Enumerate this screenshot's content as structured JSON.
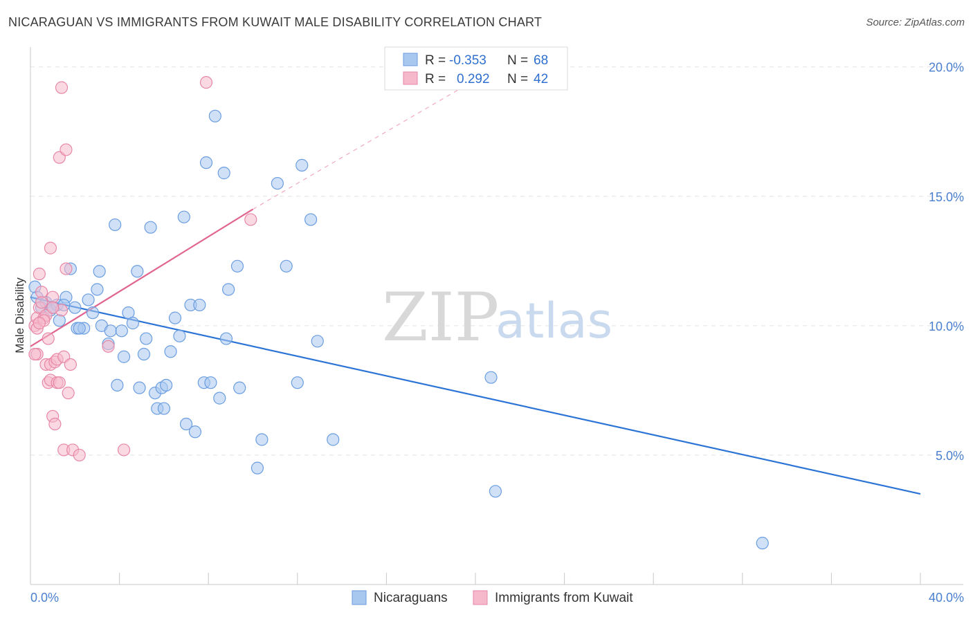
{
  "header": {
    "title": "NICARAGUAN VS IMMIGRANTS FROM KUWAIT MALE DISABILITY CORRELATION CHART",
    "source": "Source: ZipAtlas.com"
  },
  "watermark": {
    "zip": "ZIP",
    "atlas": "atlas"
  },
  "legend": {
    "rows": [
      {
        "r_label": "R =",
        "r_value": "-0.353",
        "n_label": "N =",
        "n_value": "68",
        "color": "#a9c8f0",
        "stroke": "#6a9de0"
      },
      {
        "r_label": "R =",
        "r_value": "0.292",
        "n_label": "N =",
        "n_value": "42",
        "color": "#f6b9cc",
        "stroke": "#e787a7"
      }
    ]
  },
  "bottom_legend": [
    {
      "label": "Nicaraguans",
      "color": "#a9c8f0",
      "stroke": "#6a9de0"
    },
    {
      "label": "Immigrants from Kuwait",
      "color": "#f6b9cc",
      "stroke": "#e787a7"
    }
  ],
  "chart_data": {
    "type": "scatter",
    "ylabel": "Male Disability",
    "xlabel": "",
    "xlim": [
      0,
      40
    ],
    "ylim": [
      0,
      20.5
    ],
    "x_tick_labels": [
      {
        "value": 0,
        "label": "0.0%"
      },
      {
        "value": 40,
        "label": "40.0%"
      }
    ],
    "y_tick_labels": [
      {
        "value": 5,
        "label": "5.0%"
      },
      {
        "value": 10,
        "label": "10.0%"
      },
      {
        "value": 15,
        "label": "15.0%"
      },
      {
        "value": 20,
        "label": "20.0%"
      }
    ],
    "grid": "horizontal dashed",
    "series": [
      {
        "name": "Nicaraguans",
        "color": "#a9c8f0",
        "stroke": "#6a9de0",
        "points": [
          [
            0.2,
            11.5
          ],
          [
            0.3,
            11.1
          ],
          [
            0.5,
            10.7
          ],
          [
            0.7,
            10.9
          ],
          [
            0.9,
            10.6
          ],
          [
            1.2,
            10.8
          ],
          [
            1.3,
            10.2
          ],
          [
            1.6,
            11.1
          ],
          [
            1.8,
            12.2
          ],
          [
            2.0,
            10.7
          ],
          [
            2.1,
            9.9
          ],
          [
            2.4,
            9.9
          ],
          [
            2.6,
            11.0
          ],
          [
            2.8,
            10.5
          ],
          [
            3.0,
            11.4
          ],
          [
            3.1,
            12.1
          ],
          [
            3.2,
            10.0
          ],
          [
            3.5,
            9.3
          ],
          [
            3.6,
            9.8
          ],
          [
            3.8,
            13.9
          ],
          [
            3.9,
            7.7
          ],
          [
            4.1,
            9.8
          ],
          [
            4.2,
            8.8
          ],
          [
            4.4,
            10.5
          ],
          [
            4.6,
            10.1
          ],
          [
            4.8,
            12.1
          ],
          [
            4.9,
            7.6
          ],
          [
            5.1,
            8.9
          ],
          [
            5.2,
            9.5
          ],
          [
            5.4,
            13.8
          ],
          [
            5.6,
            7.4
          ],
          [
            5.7,
            6.8
          ],
          [
            5.9,
            7.6
          ],
          [
            6.0,
            6.8
          ],
          [
            6.1,
            7.7
          ],
          [
            6.3,
            9.0
          ],
          [
            6.5,
            10.3
          ],
          [
            6.7,
            9.6
          ],
          [
            6.9,
            14.2
          ],
          [
            7.0,
            6.2
          ],
          [
            7.2,
            10.8
          ],
          [
            7.4,
            5.9
          ],
          [
            7.6,
            10.8
          ],
          [
            7.8,
            7.8
          ],
          [
            7.9,
            16.3
          ],
          [
            8.1,
            7.8
          ],
          [
            8.3,
            18.1
          ],
          [
            8.5,
            7.2
          ],
          [
            8.7,
            15.9
          ],
          [
            8.8,
            9.5
          ],
          [
            8.9,
            11.4
          ],
          [
            9.3,
            12.3
          ],
          [
            9.4,
            7.6
          ],
          [
            10.2,
            4.5
          ],
          [
            10.4,
            5.6
          ],
          [
            11.1,
            15.5
          ],
          [
            11.5,
            12.3
          ],
          [
            12.0,
            7.8
          ],
          [
            12.2,
            16.2
          ],
          [
            12.6,
            14.1
          ],
          [
            12.9,
            9.4
          ],
          [
            13.6,
            5.6
          ],
          [
            20.7,
            8.0
          ],
          [
            20.9,
            3.6
          ],
          [
            32.9,
            1.6
          ],
          [
            1.0,
            10.7
          ],
          [
            1.5,
            10.8
          ],
          [
            2.2,
            9.9
          ]
        ]
      },
      {
        "name": "Immigrants from Kuwait",
        "color": "#f6b9cc",
        "stroke": "#e787a7",
        "points": [
          [
            0.2,
            10.0
          ],
          [
            0.3,
            8.9
          ],
          [
            0.3,
            10.3
          ],
          [
            0.4,
            12.0
          ],
          [
            0.4,
            10.7
          ],
          [
            0.5,
            11.3
          ],
          [
            0.5,
            10.9
          ],
          [
            0.6,
            10.3
          ],
          [
            0.7,
            8.5
          ],
          [
            0.7,
            10.4
          ],
          [
            0.8,
            7.8
          ],
          [
            0.8,
            9.5
          ],
          [
            0.9,
            8.5
          ],
          [
            0.9,
            7.9
          ],
          [
            0.9,
            13.0
          ],
          [
            1.0,
            6.5
          ],
          [
            1.0,
            11.1
          ],
          [
            1.1,
            8.6
          ],
          [
            1.1,
            6.2
          ],
          [
            1.2,
            7.8
          ],
          [
            1.2,
            8.7
          ],
          [
            1.3,
            16.5
          ],
          [
            1.3,
            7.8
          ],
          [
            1.4,
            19.2
          ],
          [
            1.4,
            10.6
          ],
          [
            1.5,
            5.2
          ],
          [
            1.5,
            8.8
          ],
          [
            1.6,
            16.8
          ],
          [
            1.6,
            12.2
          ],
          [
            1.7,
            7.4
          ],
          [
            1.8,
            8.5
          ],
          [
            1.9,
            5.2
          ],
          [
            2.2,
            5.0
          ],
          [
            3.5,
            9.2
          ],
          [
            4.2,
            5.2
          ],
          [
            7.9,
            19.4
          ],
          [
            9.9,
            14.1
          ],
          [
            0.2,
            8.9
          ],
          [
            0.3,
            9.9
          ],
          [
            0.6,
            10.2
          ],
          [
            1.0,
            10.7
          ],
          [
            0.4,
            10.1
          ]
        ]
      }
    ],
    "trend_lines": [
      {
        "series": "Nicaraguans",
        "x": [
          0,
          40
        ],
        "y": [
          11.1,
          3.5
        ],
        "color": "#2b74d6"
      },
      {
        "series": "Immigrants from Kuwait",
        "x": [
          0,
          10
        ],
        "y": [
          9.2,
          14.5
        ],
        "color": "#e0648f",
        "dashed_extension_to": [
          20,
          19.5
        ]
      }
    ]
  }
}
